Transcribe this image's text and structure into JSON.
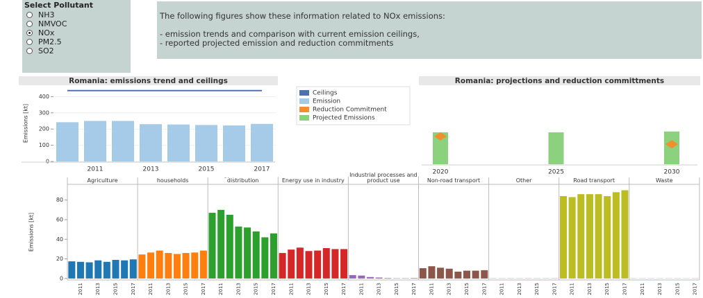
{
  "pollutant_selector": {
    "title": "Select Pollutant",
    "options": [
      "NH3",
      "NMVOC",
      "NOx",
      "PM2.5",
      "SO2"
    ],
    "selected": "NOx"
  },
  "info": {
    "heading": "The following figures show these information related to NOx emissions:",
    "items": [
      "- emission trends and comparison with current emission ceilings,",
      "- reported projected emission and reduction commitments"
    ]
  },
  "chart_data": [
    {
      "type": "bar",
      "title": "Romania: emissions trend and ceilings",
      "ylabel": "Emissions [kt]",
      "categories": [
        null,
        "2011",
        null,
        "2013",
        null,
        "2015",
        null,
        "2017"
      ],
      "series": [
        {
          "name": "Ceilings",
          "type": "line",
          "color": "#4c72b0",
          "values": [
            437,
            437,
            437,
            437,
            437,
            437,
            437,
            437
          ]
        },
        {
          "name": "Emission",
          "type": "bar",
          "color": "#a6cbe8",
          "values": [
            242,
            250,
            250,
            230,
            228,
            225,
            222,
            232
          ]
        }
      ],
      "ylim": [
        0,
        470
      ],
      "yticks": [
        0,
        100,
        200,
        300,
        400
      ],
      "grid": true
    },
    {
      "type": "bar",
      "title": "Romania: projections and reduction committments",
      "categories": [
        "2020",
        "2025",
        "2030"
      ],
      "series": [
        {
          "name": "Reduction Commitment",
          "type": "point",
          "color": "#f28e2b",
          "values": [
            166,
            null,
            119
          ]
        },
        {
          "name": "Projected Emissions",
          "type": "bar",
          "color": "#8cd17d",
          "values": [
            190,
            190,
            195
          ]
        }
      ],
      "ylim": [
        0,
        470
      ]
    },
    {
      "type": "bar",
      "ylabel": "Emissions [kt]",
      "categories": [
        null,
        "2011",
        null,
        "2013",
        null,
        "2015",
        null,
        "2017"
      ],
      "ylim": [
        -1.5,
        96
      ],
      "yticks": [
        0,
        20,
        40,
        60,
        80
      ],
      "panels": [
        {
          "title": "Agriculture",
          "color": "#1f77b4",
          "values": [
            17.5,
            17,
            16.5,
            18.5,
            17,
            19,
            18.5,
            19.5
          ]
        },
        {
          "title": "Commercial, institutional and households",
          "color": "#ff7f0e",
          "values": [
            24.5,
            26.5,
            28.5,
            26,
            25,
            26,
            26.5,
            28.5
          ]
        },
        {
          "title": "Energy production and distribution",
          "color": "#2ca02c",
          "values": [
            67,
            70,
            65,
            53,
            52,
            48,
            42,
            46
          ]
        },
        {
          "title": "Energy use in industry",
          "color": "#d62728",
          "values": [
            26,
            29.5,
            31.5,
            28,
            28.5,
            31,
            30,
            30
          ]
        },
        {
          "title": "Industrial processes and product use",
          "color": "#9467bd",
          "values": [
            3.5,
            3,
            1.5,
            1,
            0.5,
            0.3,
            0.3,
            0.5
          ]
        },
        {
          "title": "Non-road transport",
          "color": "#8c564b",
          "values": [
            10.5,
            12.5,
            11,
            10,
            7,
            8,
            8,
            8.5
          ]
        },
        {
          "title": "Other",
          "color": "#e377c2",
          "values": [
            0.3,
            0.3,
            0.3,
            0.3,
            0.3,
            0.3,
            0.3,
            0.3
          ]
        },
        {
          "title": "Road transport",
          "color": "#bcbd22",
          "values": [
            84,
            83,
            86,
            86,
            86,
            84,
            88,
            90
          ]
        },
        {
          "title": "Waste",
          "color": "#17becf",
          "values": [
            0.2,
            0.2,
            0.2,
            0.2,
            0.2,
            0.2,
            0.2,
            0.2
          ]
        }
      ]
    }
  ]
}
